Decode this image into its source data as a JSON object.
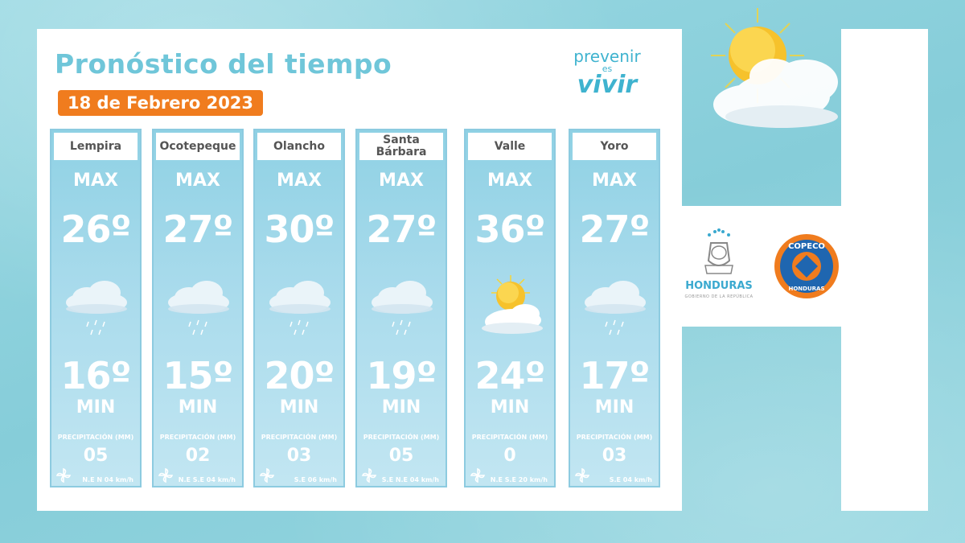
{
  "title": "Pronóstico del tiempo",
  "date": "18 de Febrero 2023",
  "brand": {
    "line1": "prevenir",
    "line2": "es",
    "line3": "vivir"
  },
  "labels": {
    "max": "MAX",
    "min": "MIN",
    "precip": "PRECIPITACIÓN (MM)"
  },
  "logos": {
    "honduras": "HONDURAS",
    "gobierno": "GOBIERNO DE LA REPÚBLICA",
    "copeco_top": "COPECO",
    "copeco_bottom": "HONDURAS"
  },
  "colors": {
    "accent": "#6fc6d9",
    "badge": "#f07c1e",
    "copeco_ring": "#f07c1e",
    "copeco_blue": "#1f66b0"
  },
  "cards": [
    {
      "name": "Lempira",
      "max": "26º",
      "min": "16º",
      "precip": "05",
      "wind": "N.E N 04 km/h",
      "icon": "cloud-rain-icon"
    },
    {
      "name": "Ocotepeque",
      "max": "27º",
      "min": "15º",
      "precip": "02",
      "wind": "N.E S.E 04 km/h",
      "icon": "cloud-rain-icon"
    },
    {
      "name": "Olancho",
      "max": "30º",
      "min": "20º",
      "precip": "03",
      "wind": "S.E 06 km/h",
      "icon": "cloud-rain-icon"
    },
    {
      "name": "Santa Bárbara",
      "max": "27º",
      "min": "19º",
      "precip": "05",
      "wind": "S.E N.E 04 km/h",
      "icon": "cloud-rain-icon"
    },
    {
      "name": "Valle",
      "max": "36º",
      "min": "24º",
      "precip": "0",
      "wind": "N.E S.E 20 km/h",
      "icon": "sun-cloud-icon"
    },
    {
      "name": "Yoro",
      "max": "27º",
      "min": "17º",
      "precip": "03",
      "wind": "S.E 04 km/h",
      "icon": "cloud-rain-icon"
    }
  ]
}
